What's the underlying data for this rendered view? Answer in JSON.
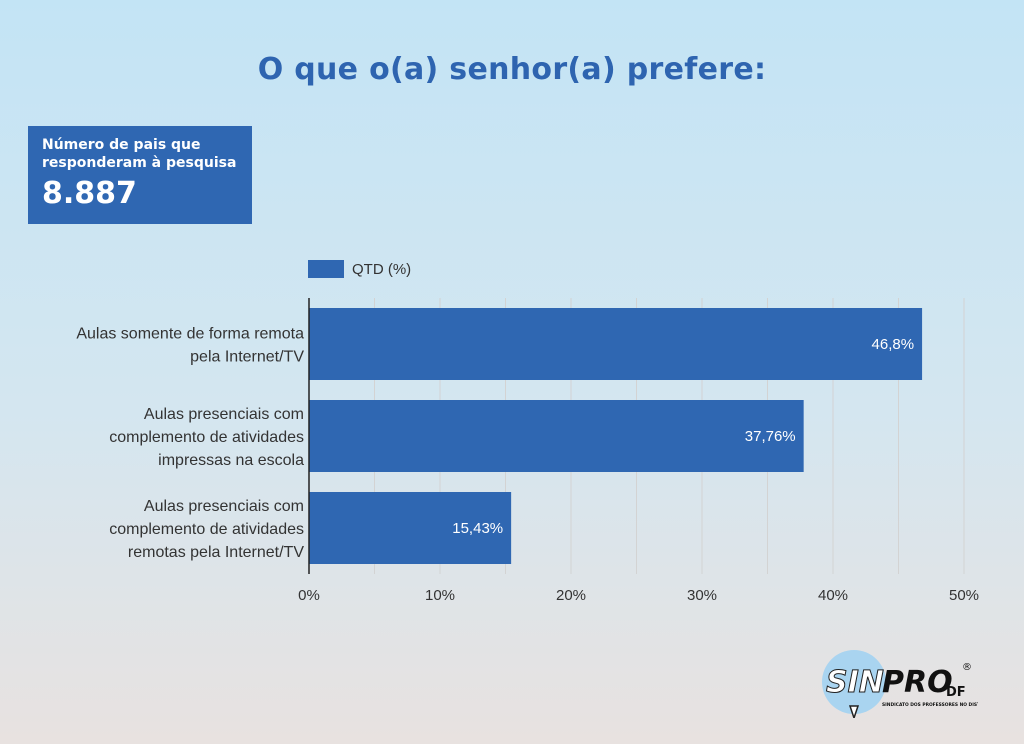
{
  "title": "O que o(a) senhor(a) prefere:",
  "stat": {
    "label": "Número de pais que responderam à pesquisa",
    "value": "8.887"
  },
  "colors": {
    "bar": "#2f67b2",
    "title": "#2e64b0",
    "grid": "#d3d3d3"
  },
  "chart_data": {
    "type": "bar",
    "orientation": "horizontal",
    "categories": [
      [
        "Aulas somente de forma remota",
        "pela Internet/TV"
      ],
      [
        "Aulas presenciais com",
        "complemento de atividades",
        "impressas na escola"
      ],
      [
        "Aulas presenciais com",
        "complemento de atividades",
        "remotas pela Internet/TV"
      ]
    ],
    "series": [
      {
        "name": "QTD (%)",
        "values": [
          46.8,
          37.76,
          15.43
        ]
      }
    ],
    "data_labels": [
      "46,8%",
      "37,76%",
      "15,43%"
    ],
    "xlim": [
      0,
      50
    ],
    "xticks": [
      0,
      10,
      20,
      30,
      40,
      50
    ],
    "xtick_labels": [
      "0%",
      "10%",
      "20%",
      "30%",
      "40%",
      "50%"
    ],
    "grid": true,
    "legend_position": "top-left"
  },
  "logo": {
    "text_sin": "SIN",
    "text_pro": "PRO",
    "text_df": "DF",
    "registered": "®",
    "caption": "SINDICATO DOS PROFESSORES NO DISTRITO FEDERAL"
  }
}
